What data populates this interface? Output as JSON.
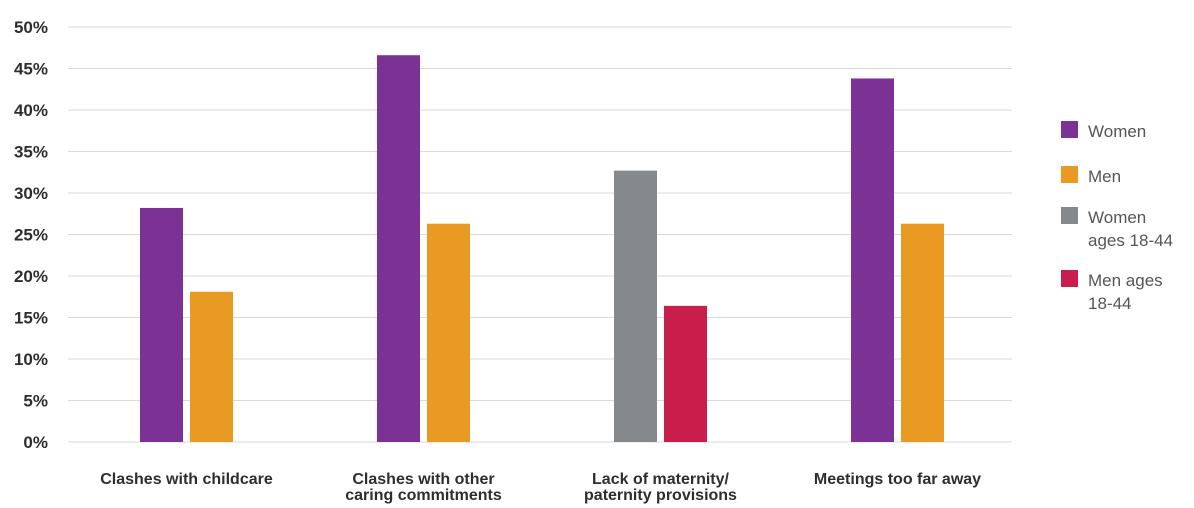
{
  "chart_data": {
    "type": "bar",
    "y_axis": {
      "min": 0,
      "max": 50,
      "step": 5,
      "tick_labels": [
        "0%",
        "5%",
        "10%",
        "15%",
        "20%",
        "25%",
        "30%",
        "35%",
        "40%",
        "45%",
        "50%"
      ]
    },
    "grid": true,
    "legend_position": "right",
    "categories": [
      {
        "label_lines": [
          "Clashes with childcare"
        ],
        "bars": [
          {
            "series": "women",
            "value": 28.2
          },
          {
            "series": "men",
            "value": 18.1
          }
        ]
      },
      {
        "label_lines": [
          "Clashes with other",
          "caring commitments"
        ],
        "bars": [
          {
            "series": "women",
            "value": 46.6
          },
          {
            "series": "men",
            "value": 26.3
          }
        ]
      },
      {
        "label_lines": [
          "Lack of maternity/",
          "paternity provisions"
        ],
        "bars": [
          {
            "series": "women_18_44",
            "value": 32.7
          },
          {
            "series": "men_18_44",
            "value": 16.4
          }
        ]
      },
      {
        "label_lines": [
          "Meetings too far away"
        ],
        "bars": [
          {
            "series": "women",
            "value": 43.8
          },
          {
            "series": "men",
            "value": 26.3
          }
        ]
      }
    ],
    "series": [
      {
        "id": "women",
        "legend_lines": [
          "Women"
        ],
        "color": "#7b3294"
      },
      {
        "id": "men",
        "legend_lines": [
          "Men"
        ],
        "color": "#e89a22"
      },
      {
        "id": "women_18_44",
        "legend_lines": [
          "Women",
          "ages 18-44"
        ],
        "color": "#85898c"
      },
      {
        "id": "men_18_44",
        "legend_lines": [
          "Men ages",
          "18-44"
        ],
        "color": "#c91d4b"
      }
    ],
    "colors": {
      "grid": "#d9d9d9",
      "axis_text": "#2e2e2e",
      "legend_text": "#555555"
    }
  }
}
